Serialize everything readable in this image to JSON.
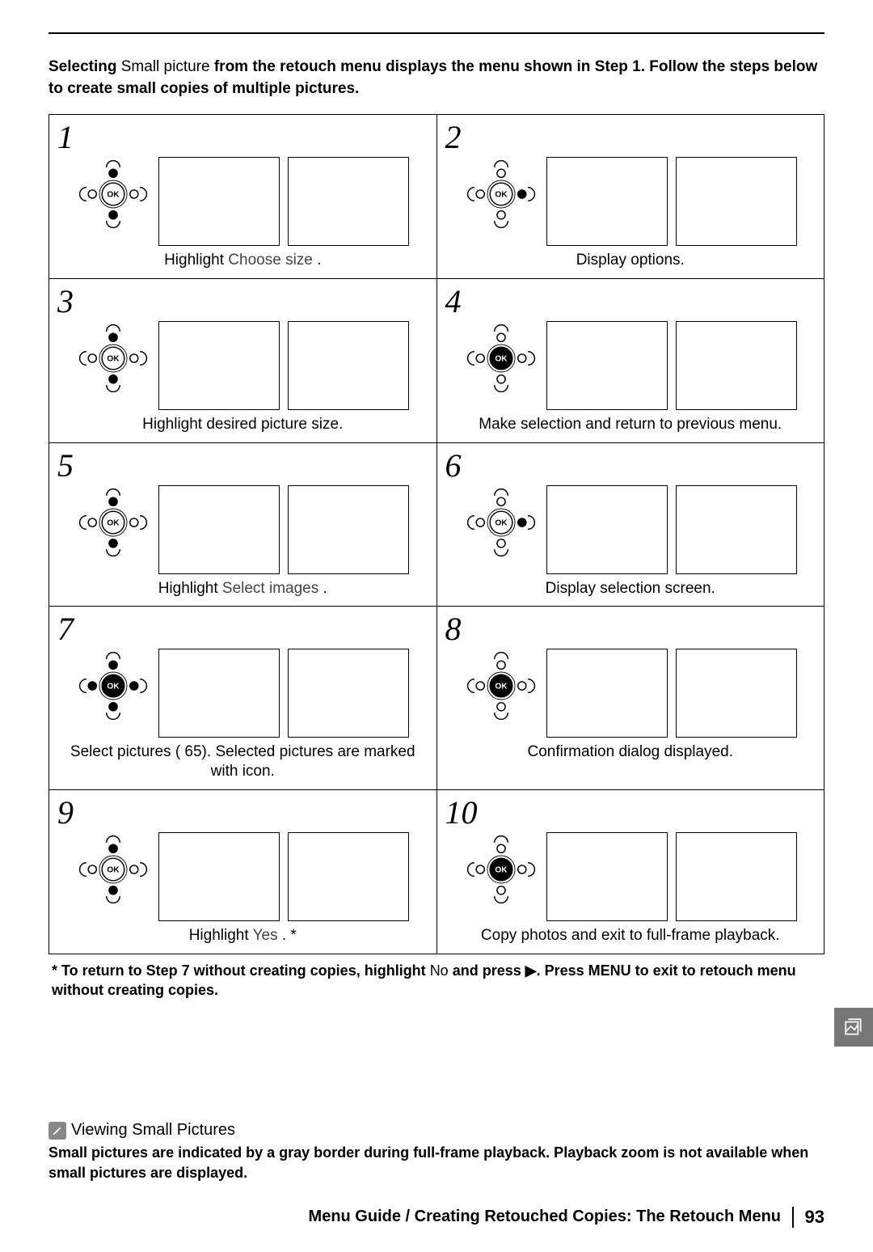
{
  "intro": {
    "part1_bold": "Selecting ",
    "part2_plain": "Small picture ",
    "part3_bold": "from the retouch menu displays the menu shown in Step 1. Follow the steps below to create small copies of multiple pictures."
  },
  "steps": [
    {
      "num": "1",
      "selector": "updown",
      "caption_pre": "Highlight ",
      "caption_em": "Choose size",
      "caption_post": " ."
    },
    {
      "num": "2",
      "selector": "right",
      "caption_pre": "",
      "caption_em": "",
      "caption_post": "Display options."
    },
    {
      "num": "3",
      "selector": "updown",
      "caption_pre": "",
      "caption_em": "",
      "caption_post": "Highlight desired picture size."
    },
    {
      "num": "4",
      "selector": "ok",
      "caption_pre": "",
      "caption_em": "",
      "caption_post": "Make selection and return to previous menu."
    },
    {
      "num": "5",
      "selector": "updown",
      "caption_pre": "Highlight ",
      "caption_em": "Select images",
      "caption_post": " ."
    },
    {
      "num": "6",
      "selector": "right",
      "caption_pre": "",
      "caption_em": "",
      "caption_post": "Display selection screen."
    },
    {
      "num": "7",
      "selector": "all",
      "caption_pre": "",
      "caption_em": "",
      "caption_post": "Select pictures (  65). Selected pictures are marked with     icon."
    },
    {
      "num": "8",
      "selector": "ok",
      "caption_pre": "",
      "caption_em": "",
      "caption_post": "Confirmation dialog displayed."
    },
    {
      "num": "9",
      "selector": "updown",
      "caption_pre": "Highlight ",
      "caption_em": "Yes",
      "caption_post": " . *"
    },
    {
      "num": "10",
      "selector": "ok",
      "caption_pre": "",
      "caption_em": "",
      "caption_post": "Copy photos and exit to full-frame playback."
    }
  ],
  "footnote": {
    "p1_bold": "* To return to Step 7 without creating copies, highlight ",
    "p2_plain": "No",
    "p3_bold": " and press ▶. Press MENU to exit to retouch menu without creating copies."
  },
  "note": {
    "title": "Viewing Small Pictures",
    "body_bold": "Small pictures are indicated by a gray border during full-frame playback. Playback zoom is not available when small pictures are displayed."
  },
  "footer": {
    "title": "Menu Guide / Creating Retouched Copies: The Retouch Menu",
    "page": "93"
  },
  "style": {
    "selector_stroke": "#000000",
    "selector_fill_active": "#000000",
    "selector_fill_inactive": "none",
    "selector_line_width": 1.6
  }
}
